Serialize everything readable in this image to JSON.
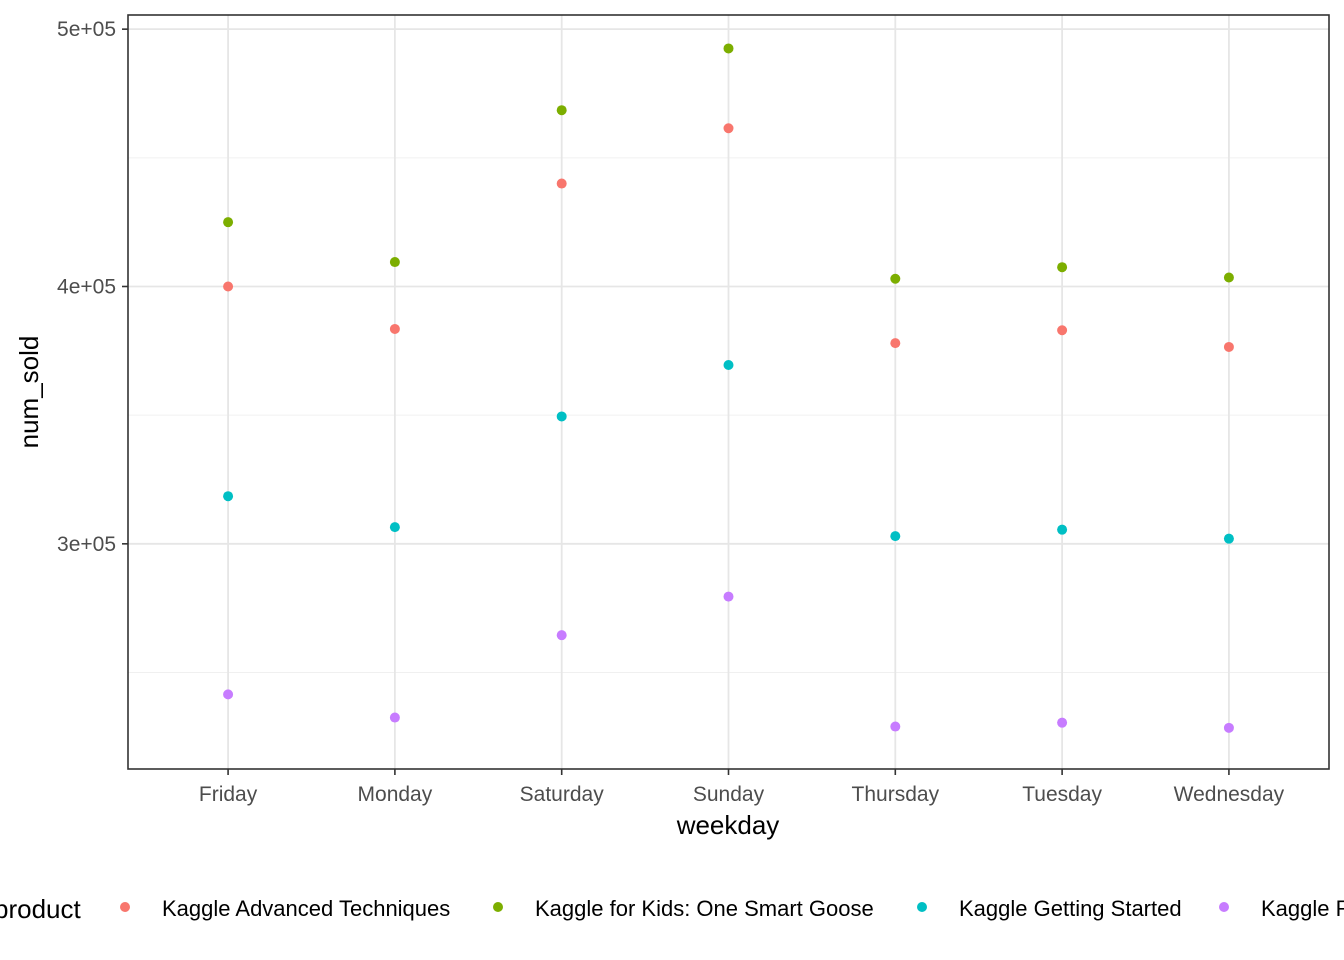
{
  "chart_data": {
    "type": "scatter",
    "title": "",
    "xlabel": "weekday",
    "ylabel": "num_sold",
    "categories": [
      "Friday",
      "Monday",
      "Saturday",
      "Sunday",
      "Thursday",
      "Tuesday",
      "Wednesday"
    ],
    "ylim": [
      212500,
      505500
    ],
    "yticks": [
      300000,
      400000,
      500000
    ],
    "ytick_labels": [
      "3e+05",
      "4e+05",
      "5e+05"
    ],
    "grid": true,
    "legend": {
      "title": "product",
      "position": "bottom"
    },
    "series": [
      {
        "name": "Kaggle Advanced Techniques",
        "color": "#F8766D",
        "values": [
          400000,
          383500,
          440000,
          461500,
          378000,
          383000,
          376500
        ]
      },
      {
        "name": "Kaggle for Kids: One Smart Goose",
        "color": "#7CAE00",
        "values": [
          425000,
          409500,
          468500,
          492500,
          403000,
          407500,
          403500
        ]
      },
      {
        "name": "Kaggle Getting Started",
        "color": "#00BFC4",
        "values": [
          318500,
          306500,
          349500,
          369500,
          303000,
          305500,
          302000
        ]
      },
      {
        "name": "Kaggle Recipe Book",
        "color": "#C77CFF",
        "values": [
          241500,
          232500,
          264500,
          279500,
          229000,
          230500,
          228500
        ]
      }
    ]
  }
}
